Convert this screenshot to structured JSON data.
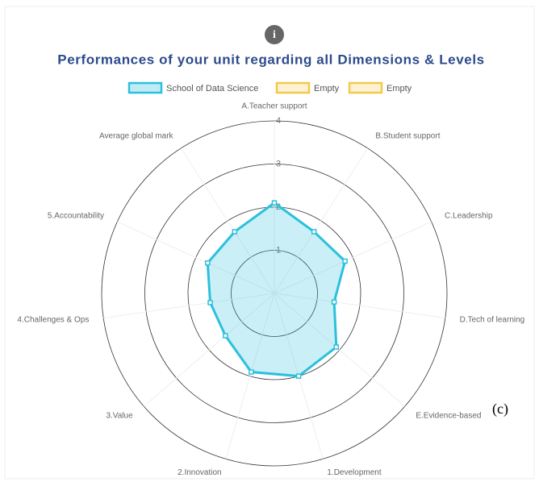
{
  "chart_data": {
    "type": "radar",
    "title": "Performances of your unit regarding all Dimensions & Levels",
    "categories": [
      "A.Teacher support",
      "B.Student support",
      "C.Leadership",
      "D.Tech of learning",
      "E.Evidence-based",
      "1.Development",
      "2.Innovation",
      "3.Value",
      "4.Challenges & Ops",
      "5.Accountability",
      "Average global mark"
    ],
    "series": [
      {
        "name": "School of Data Science",
        "color": "#2bc0dc",
        "values": [
          2.1,
          1.7,
          1.8,
          1.4,
          1.9,
          2.0,
          1.9,
          1.5,
          1.5,
          1.7,
          1.7
        ]
      },
      {
        "name": "Empty",
        "color": "#f2c94c",
        "values": [
          null,
          null,
          null,
          null,
          null,
          null,
          null,
          null,
          null,
          null,
          null
        ]
      },
      {
        "name": "Empty",
        "color": "#f2c94c",
        "values": [
          null,
          null,
          null,
          null,
          null,
          null,
          null,
          null,
          null,
          null,
          null
        ]
      }
    ],
    "rlim": [
      0,
      4
    ],
    "rticks": [
      1,
      2,
      3,
      4
    ],
    "annotation": "(c)"
  }
}
